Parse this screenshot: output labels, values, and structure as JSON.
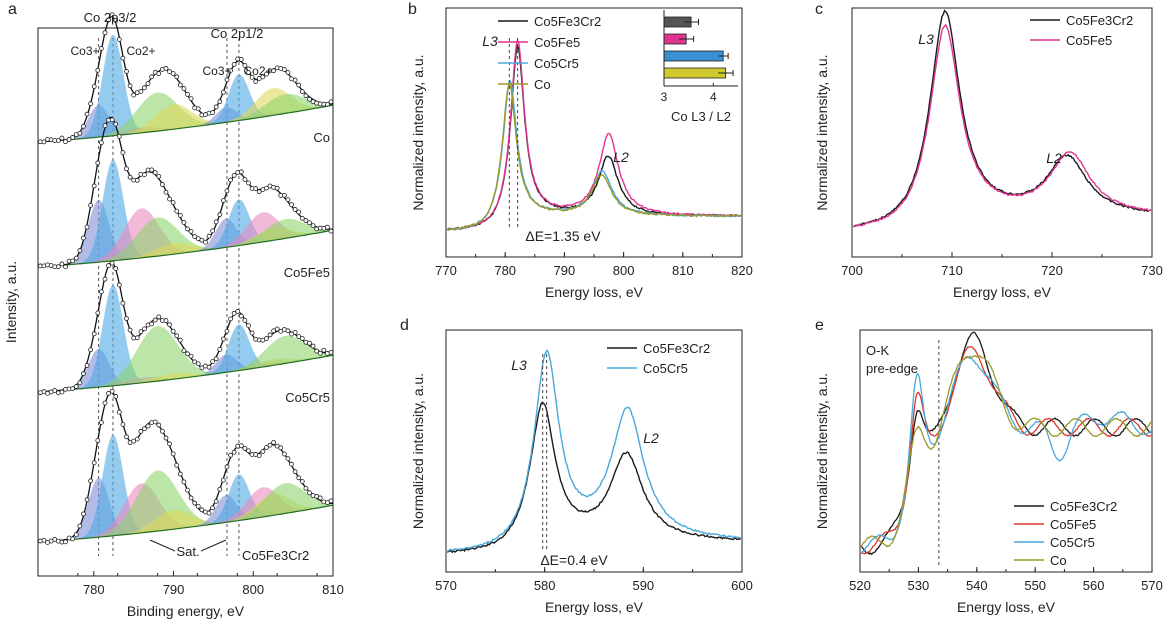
{
  "figure": {
    "colors": {
      "black": "#1a1a1a",
      "magenta": "#e0358f",
      "cyan": "#4aa8dc",
      "olive": "#9a9a28",
      "red": "#d9392c",
      "co3_fill": "#7f8fd6",
      "co2_fill": "#4fa8e3",
      "sat_pink": "#e98bc0",
      "sat_green": "#8fd36e",
      "sat_yellow": "#dcd85a",
      "bg_fill": "#6fbf6f"
    }
  },
  "chart_data": [
    {
      "panel": "a",
      "type": "line",
      "title": "",
      "xlabel": "Binding energy, eV",
      "ylabel": "Intensity, a.u.",
      "xlim": [
        773,
        810
      ],
      "x_ticks": [
        780,
        790,
        800,
        810
      ],
      "vlines": [
        780.6,
        782.4,
        796.7,
        798.2
      ],
      "annotations": {
        "co2p32": "Co 2p3/2",
        "co2p12": "Co 2p1/2",
        "co3plus_a": "Co3+",
        "co2plus_a": "Co2+",
        "co3plus_b": "Co3+",
        "co2plus_b": "Co2+",
        "sat": "Sat."
      },
      "series": [
        {
          "name": "Co",
          "co3_ratio": 0.35,
          "sat_pink": 0.05,
          "sat_green": 0.35,
          "sat_yellow": 0.45
        },
        {
          "name": "Co5Fe5",
          "co3_ratio": 0.85,
          "sat_pink": 0.45,
          "sat_green": 0.35,
          "sat_yellow": 0.2
        },
        {
          "name": "Co5Cr5",
          "co3_ratio": 0.45,
          "sat_pink": 0.05,
          "sat_green": 0.5,
          "sat_yellow": 0.1
        },
        {
          "name": "Co5Fe3Cr2",
          "co3_ratio": 0.8,
          "sat_pink": 0.45,
          "sat_green": 0.55,
          "sat_yellow": 0.35
        }
      ]
    },
    {
      "panel": "b",
      "type": "line",
      "xlabel": "Energy loss, eV",
      "ylabel": "Normalized intensity, a.u.",
      "xlim": [
        770,
        820
      ],
      "x_ticks": [
        770,
        780,
        790,
        800,
        810,
        820
      ],
      "vlines": [
        780.7,
        782.1
      ],
      "annotations": {
        "l3": "L3",
        "l2": "L2",
        "delta": "ΔE=1.35 eV"
      },
      "series": [
        {
          "name": "Co5Fe3Cr2",
          "l3_center": 782.1,
          "l3_height": 0.92,
          "l2_center": 797.4,
          "l2_height": 0.32
        },
        {
          "name": "Co5Fe5",
          "l3_center": 782.1,
          "l3_height": 0.95,
          "l2_center": 797.5,
          "l2_height": 0.44
        },
        {
          "name": "Co5Cr5",
          "l3_center": 780.8,
          "l3_height": 0.74,
          "l2_center": 796.4,
          "l2_height": 0.24
        },
        {
          "name": "Co",
          "l3_center": 780.7,
          "l3_height": 0.72,
          "l2_center": 796.3,
          "l2_height": 0.22
        }
      ],
      "inset": {
        "type": "bar",
        "xlabel": "Co L3 / L2",
        "xlim": [
          3,
          4.5
        ],
        "x_ticks": [
          3,
          4
        ],
        "categories": [
          "Co5Fe3Cr2",
          "Co5Fe5",
          "Co5Cr5",
          "Co"
        ],
        "values": [
          3.55,
          3.45,
          4.2,
          4.25
        ],
        "errors": [
          0.15,
          0.15,
          0.1,
          0.15
        ]
      }
    },
    {
      "panel": "c",
      "type": "line",
      "xlabel": "Energy loss, eV",
      "ylabel": "Normalized intensity, a.u.",
      "xlim": [
        700,
        730
      ],
      "x_ticks": [
        700,
        710,
        720,
        730
      ],
      "annotations": {
        "l3": "L3",
        "l2": "L2"
      },
      "series": [
        {
          "name": "Co5Fe3Cr2",
          "l3_center": 709.3,
          "l3_height": 1.0,
          "l2_center": 721.5,
          "l2_height": 0.28
        },
        {
          "name": "Co5Fe5",
          "l3_center": 709.3,
          "l3_height": 0.93,
          "l2_center": 721.8,
          "l2_height": 0.3
        }
      ]
    },
    {
      "panel": "d",
      "type": "line",
      "xlabel": "Energy loss, eV",
      "ylabel": "Normalized intensity, a.u.",
      "xlim": [
        570,
        600
      ],
      "x_ticks": [
        570,
        580,
        590,
        600
      ],
      "vlines": [
        579.8,
        580.2
      ],
      "annotations": {
        "l3": "L3",
        "l2": "L2",
        "delta": "ΔE=0.4 eV"
      },
      "series": [
        {
          "name": "Co5Fe3Cr2",
          "l3_center": 579.8,
          "l3_height": 0.7,
          "l2_center": 588.3,
          "l2_height": 0.44
        },
        {
          "name": "Co5Cr5",
          "l3_center": 580.2,
          "l3_height": 0.95,
          "l2_center": 588.4,
          "l2_height": 0.66
        }
      ]
    },
    {
      "panel": "e",
      "type": "line",
      "xlabel": "Energy loss, eV",
      "ylabel": "Normalized intensity, a.u.",
      "xlim": [
        520,
        570
      ],
      "x_ticks": [
        520,
        530,
        540,
        550,
        560,
        570
      ],
      "vlines": [
        533.5
      ],
      "annotations": {
        "line1": "O-K",
        "line2": "pre-edge"
      },
      "series": [
        {
          "name": "Co5Fe3Cr2",
          "pre_peak": 0.55,
          "main_peak": 0.95
        },
        {
          "name": "Co5Fe5",
          "pre_peak": 0.6,
          "main_peak": 0.9
        },
        {
          "name": "Co5Cr5",
          "pre_peak": 0.66,
          "main_peak": 0.88
        },
        {
          "name": "Co",
          "pre_peak": 0.42,
          "main_peak": 0.92
        }
      ]
    }
  ]
}
